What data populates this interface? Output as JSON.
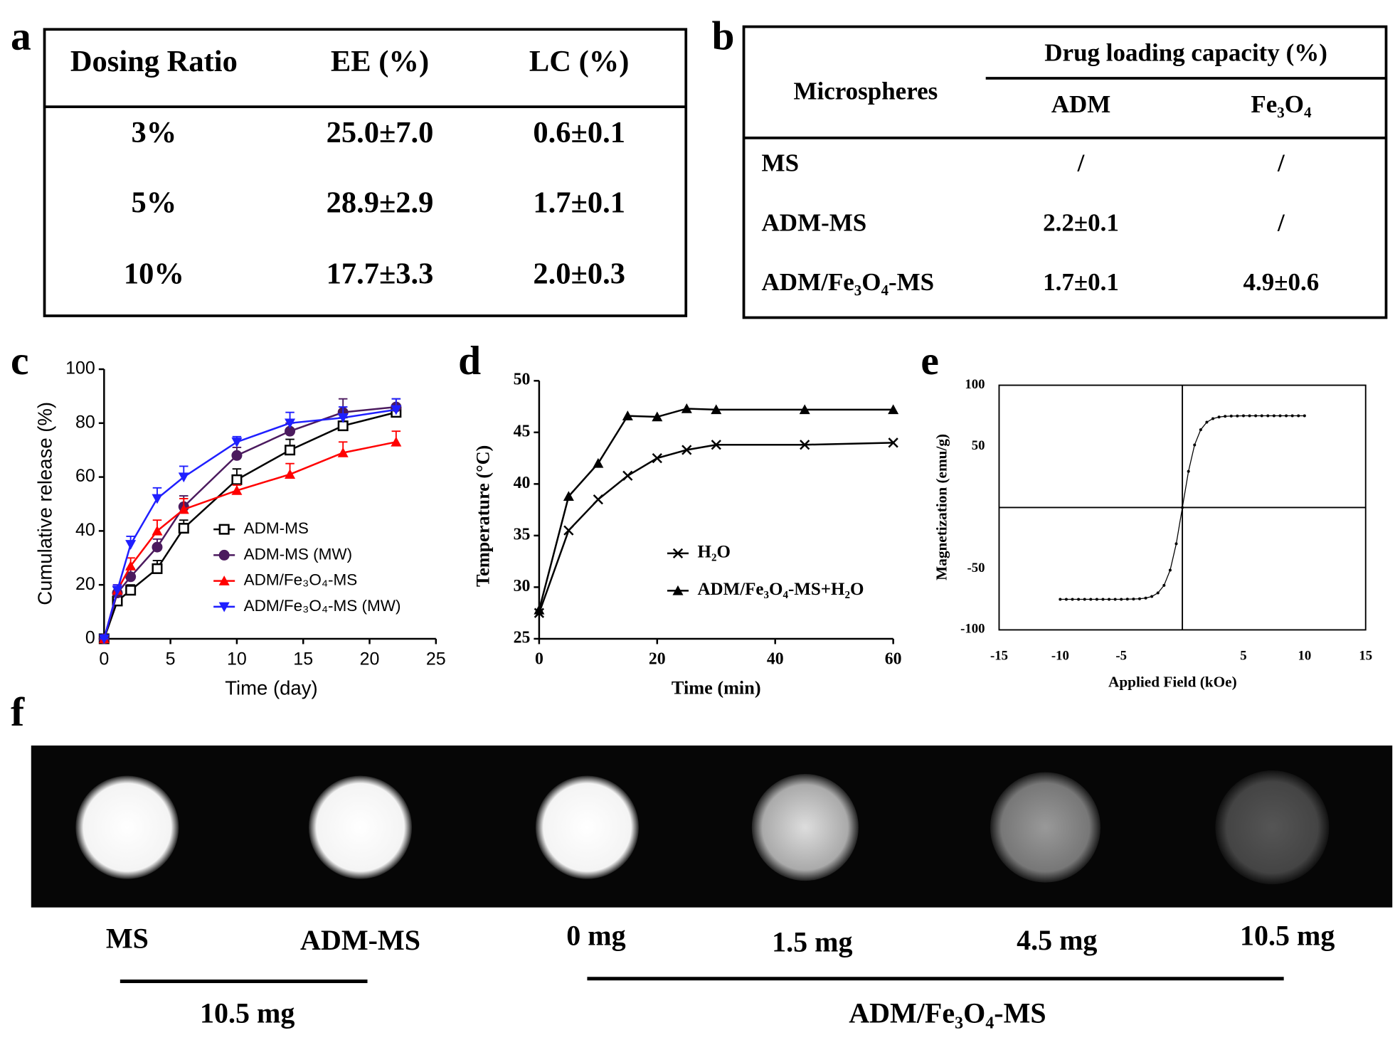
{
  "panels": [
    "a",
    "b",
    "c",
    "d",
    "e",
    "f"
  ],
  "table_a": {
    "headers": [
      "Dosing Ratio",
      "EE (%)",
      "LC (%)"
    ],
    "rows": [
      [
        "3%",
        "25.0±7.0",
        "0.6±0.1"
      ],
      [
        "5%",
        "28.9±2.9",
        "1.7±0.1"
      ],
      [
        "10%",
        "17.7±3.3",
        "2.0±0.3"
      ]
    ]
  },
  "table_b": {
    "row_header": "Microspheres",
    "group_header": "Drug loading capacity (%)",
    "headers": [
      "ADM",
      "Fe₃O₄"
    ],
    "rows": [
      [
        "MS",
        "/",
        "/"
      ],
      [
        "ADM-MS",
        "2.2±0.1",
        "/"
      ],
      [
        "ADM/Fe₃O₄-MS",
        "1.7±0.1",
        "4.9±0.6"
      ]
    ]
  },
  "chart_data": [
    {
      "type": "line",
      "x_label": "Time (day)",
      "y_label": "Cumulative release (%)",
      "x": [
        0,
        1,
        2,
        4,
        6,
        10,
        14,
        18,
        22
      ],
      "xlim": [
        0,
        25
      ],
      "xticks": [
        0,
        5,
        10,
        15,
        20,
        25
      ],
      "ylim": [
        0,
        100
      ],
      "yticks": [
        0,
        20,
        40,
        60,
        80,
        100
      ],
      "series": [
        {
          "name": "ADM-MS",
          "color": "#000000",
          "marker": "square",
          "values": [
            0,
            14,
            18,
            26,
            41,
            59,
            70,
            79,
            84
          ],
          "errors": [
            0,
            2,
            2,
            3,
            3,
            4,
            4,
            3,
            2
          ]
        },
        {
          "name": "ADM-MS (MW)",
          "color": "#4b1a5e",
          "marker": "circle",
          "values": [
            0,
            17,
            23,
            34,
            49,
            68,
            77,
            84,
            86
          ],
          "errors": [
            0,
            2,
            3,
            3,
            4,
            3,
            3,
            5,
            3
          ]
        },
        {
          "name": "ADM/Fe₃O₄-MS",
          "color": "#ff0000",
          "marker": "triangle-up",
          "values": [
            0,
            18,
            27,
            40,
            48,
            55,
            61,
            69,
            73
          ],
          "errors": [
            0,
            2,
            3,
            4,
            4,
            2,
            4,
            4,
            4
          ]
        },
        {
          "name": "ADM/Fe₃O₄-MS (MW)",
          "color": "#1f1fff",
          "marker": "triangle-down",
          "values": [
            0,
            18,
            35,
            52,
            60,
            73,
            80,
            82,
            85
          ],
          "errors": [
            0,
            2,
            3,
            4,
            4,
            2,
            4,
            4,
            4
          ]
        }
      ]
    },
    {
      "type": "line",
      "x_label": "Time (min)",
      "y_label": "Temperature (°C)",
      "x": [
        0,
        5,
        10,
        15,
        20,
        25,
        30,
        45,
        60
      ],
      "xlim": [
        0,
        60
      ],
      "xticks": [
        0,
        20,
        40,
        60
      ],
      "ylim": [
        25,
        50
      ],
      "yticks": [
        25,
        30,
        35,
        40,
        45,
        50
      ],
      "series": [
        {
          "name": "H₂O",
          "color": "#000000",
          "marker": "x",
          "values": [
            27.5,
            35.5,
            38.5,
            40.8,
            42.5,
            43.3,
            43.8,
            43.8,
            44.0
          ]
        },
        {
          "name": "ADM/Fe₃O₄-MS+H₂O",
          "color": "#000000",
          "marker": "triangle-up",
          "values": [
            27.8,
            38.8,
            42,
            46.6,
            46.5,
            47.3,
            47.2,
            47.2,
            47.2
          ]
        }
      ]
    },
    {
      "type": "line",
      "x_label": "Applied Field (kOe)",
      "y_label": "Magnetization (emu/g)",
      "frame": "box",
      "zero_lines": true,
      "x": [
        -10,
        -9.5,
        -9,
        -8.5,
        -8,
        -7.5,
        -7,
        -6.5,
        -6,
        -5.5,
        -5,
        -4.5,
        -4,
        -3.5,
        -3,
        -2.5,
        -2,
        -1.5,
        -1,
        -0.5,
        0,
        0.5,
        1,
        1.5,
        2,
        2.5,
        3,
        3.5,
        4,
        4.5,
        5,
        5.5,
        6,
        6.5,
        7,
        7.5,
        8,
        8.5,
        9,
        9.5,
        10
      ],
      "xlim": [
        -15,
        15
      ],
      "xticks": [
        -15,
        -10,
        -5,
        5,
        10,
        15
      ],
      "ylim": [
        -100,
        100
      ],
      "yticks": [
        100,
        50,
        -50,
        -100
      ],
      "series": [
        {
          "color": "#000000",
          "marker": "dot",
          "values": [
            -75,
            -75,
            -75,
            -75,
            -75,
            -75,
            -75,
            -75,
            -75,
            -75,
            -75,
            -74.9,
            -74.8,
            -74.6,
            -74,
            -72.7,
            -69.8,
            -63.6,
            -51.2,
            -29.6,
            0,
            29.6,
            51.2,
            63.6,
            69.8,
            72.7,
            74,
            74.6,
            74.8,
            74.9,
            75,
            75,
            75,
            75,
            75,
            75,
            75,
            75,
            75,
            75,
            75
          ]
        }
      ]
    }
  ],
  "panel_f": {
    "labels": [
      "MS",
      "ADM-MS",
      "0 mg",
      "1.5 mg",
      "4.5 mg",
      "10.5 mg"
    ],
    "groups": [
      "10.5 mg",
      "ADM/Fe₃O₄-MS"
    ]
  }
}
